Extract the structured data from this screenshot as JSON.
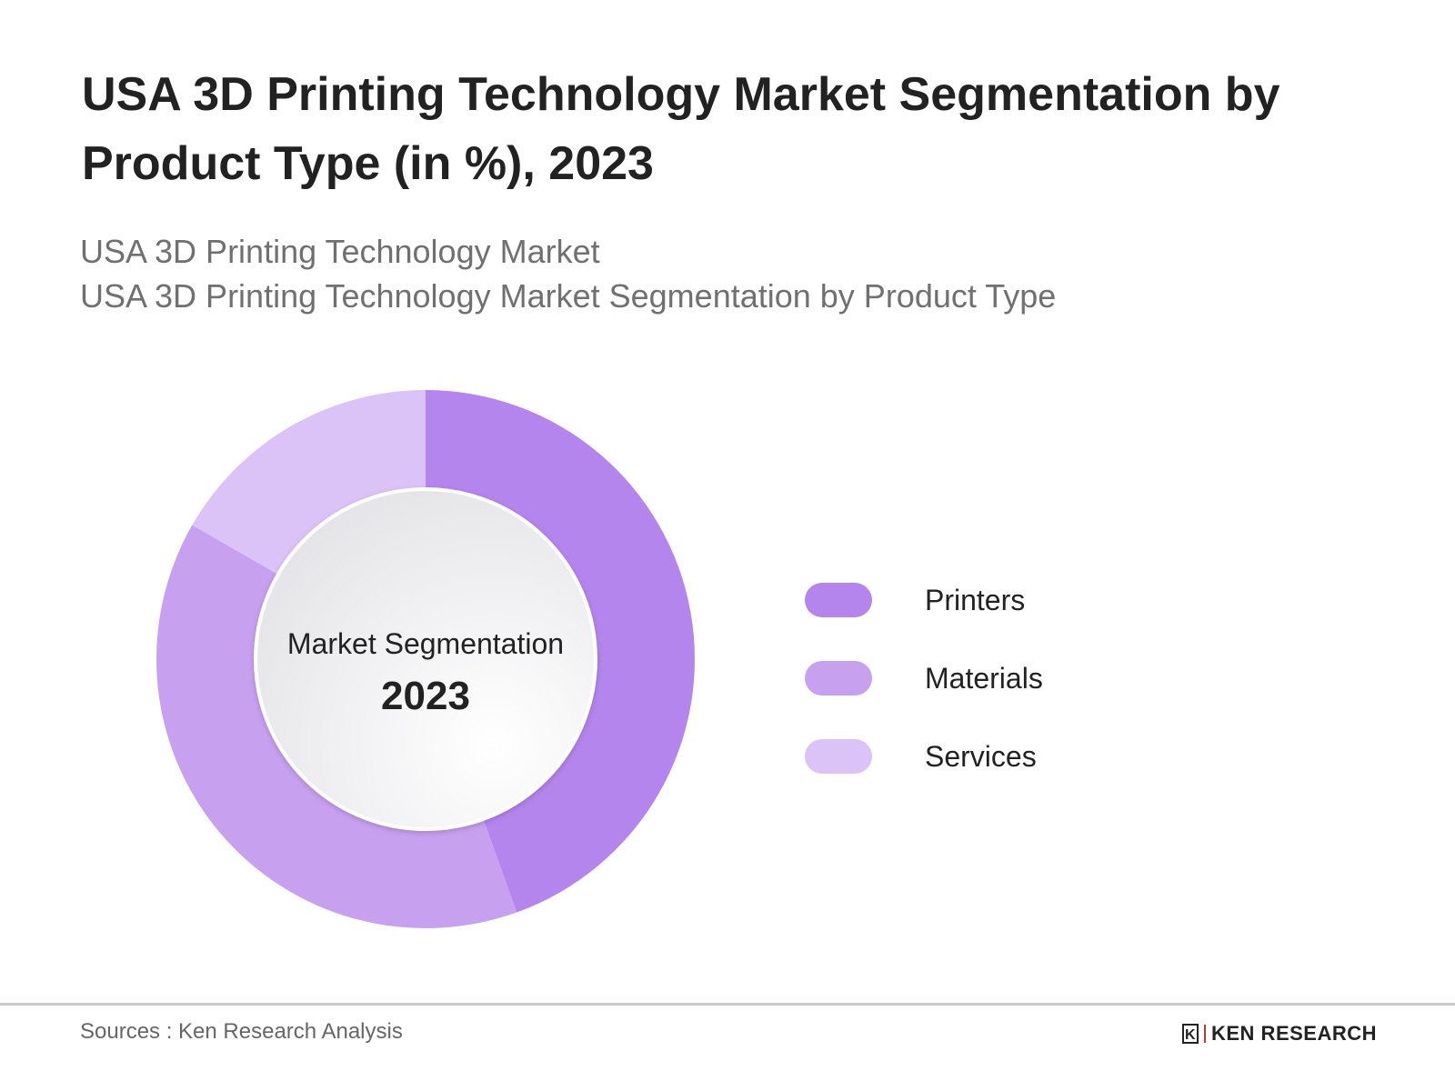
{
  "title": "USA 3D Printing Technology Market Segmentation by Product Type (in %), 2023",
  "subtitle_lines": [
    "USA 3D Printing Technology Market",
    "USA 3D Printing Technology Market Segmentation by Product Type"
  ],
  "chart_data": {
    "type": "pie",
    "variant": "donut",
    "center_label": "Market Segmentation",
    "center_value": "2023",
    "categories": [
      "Printers",
      "Materials",
      "Services"
    ],
    "values": [
      44.5,
      38.8,
      16.7
    ],
    "colors": [
      "#b485ec",
      "#c7a0ef",
      "#dcc3f7"
    ],
    "legend_position": "right"
  },
  "footer": {
    "sources": "Sources : Ken Research Analysis",
    "logo_text": "KEN RESEARCH",
    "logo_mark": "K"
  }
}
